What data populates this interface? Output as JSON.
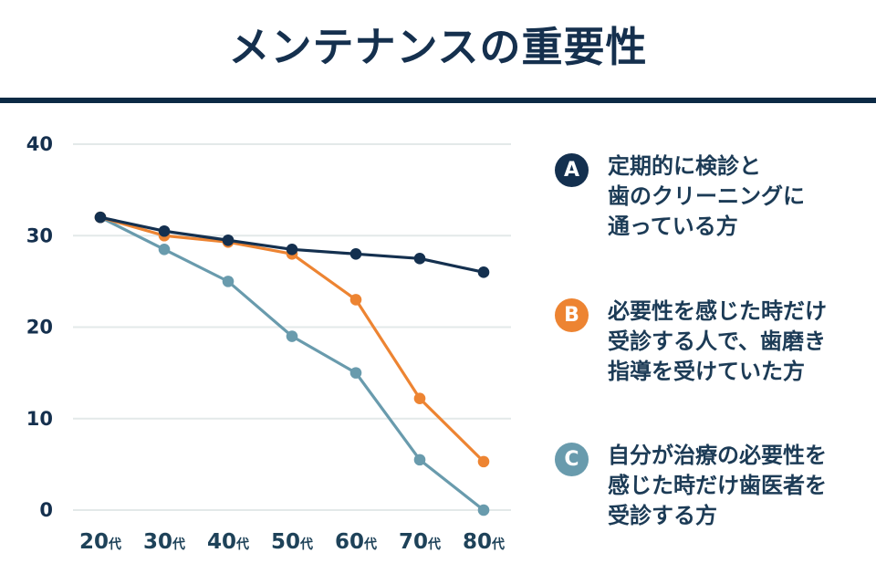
{
  "header": {
    "title": "メンテナンスの重要性"
  },
  "colors": {
    "navy": "#14304F",
    "orange": "#ED8432",
    "steel": "#699BAD",
    "grid": "#E3E9E9",
    "axis_text": "#1E4259",
    "divider": "#0C2A45",
    "background": "#FFFFFF"
  },
  "chart_data": {
    "type": "line",
    "title": "メンテナンスの重要性",
    "xlabel": "",
    "ylabel": "",
    "categories": [
      "20",
      "30",
      "40",
      "50",
      "60",
      "70",
      "80"
    ],
    "category_suffix": "代",
    "ylim": [
      0,
      40
    ],
    "y_ticks": [
      0,
      10,
      20,
      30,
      40
    ],
    "grid": true,
    "legend_position": "right",
    "series": [
      {
        "name": "A",
        "label": "定期的に検診と歯のクリーニングに通っている方",
        "color": "#14304F",
        "values": [
          32,
          30.5,
          29.5,
          28.5,
          28,
          27.5,
          26
        ]
      },
      {
        "name": "B",
        "label": "必要性を感じた時だけ受診する人で、歯磨き指導を受けていた方",
        "color": "#ED8432",
        "values": [
          32,
          30,
          29.3,
          28,
          23,
          12.2,
          5.3
        ]
      },
      {
        "name": "C",
        "label": "自分が治療の必要性を感じた時だけ歯医者を受診する方",
        "color": "#699BAD",
        "values": [
          32,
          28.5,
          25,
          19,
          15,
          5.5,
          0
        ]
      }
    ]
  },
  "legend": {
    "items": [
      {
        "letter": "A",
        "color": "#14304F",
        "text": "定期的に検診と\n歯のクリーニングに\n通っている方"
      },
      {
        "letter": "B",
        "color": "#ED8432",
        "text": "必要性を感じた時だけ\n受診する人で、歯磨き\n指導を受けていた方"
      },
      {
        "letter": "C",
        "color": "#699BAD",
        "text": "自分が治療の必要性を\n感じた時だけ歯医者を\n受診する方"
      }
    ]
  }
}
